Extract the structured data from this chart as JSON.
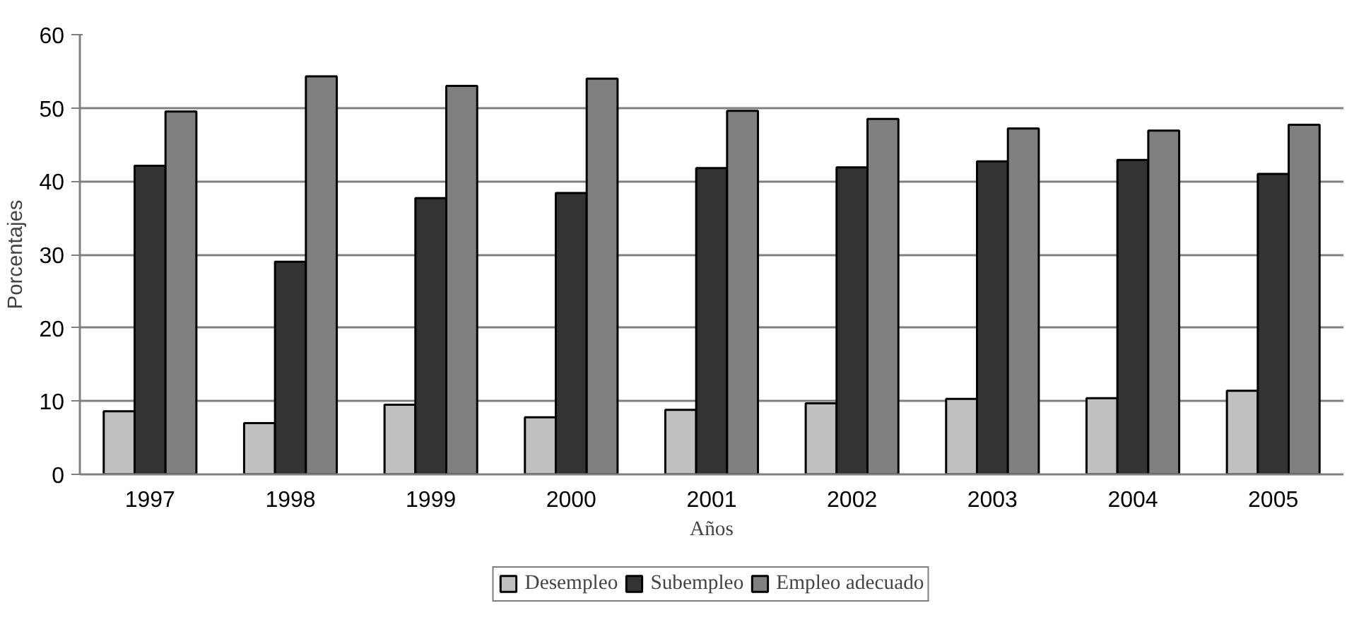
{
  "chart_data": {
    "type": "bar",
    "xlabel": "Años",
    "ylabel": "Porcentajes",
    "categories": [
      "1997",
      "1998",
      "1999",
      "2000",
      "2001",
      "2002",
      "2003",
      "2004",
      "2005"
    ],
    "series": [
      {
        "name": "Desempleo",
        "color": "#c0c0c0",
        "values": [
          8.6,
          7.0,
          9.5,
          7.8,
          8.8,
          9.7,
          10.3,
          10.4,
          11.4
        ]
      },
      {
        "name": "Subempleo",
        "color": "#333333",
        "values": [
          42.1,
          29.0,
          37.7,
          38.4,
          41.8,
          41.9,
          42.7,
          42.9,
          41.0
        ]
      },
      {
        "name": "Empleo adecuado",
        "color": "#808080",
        "values": [
          49.5,
          54.3,
          53.0,
          54.0,
          49.6,
          48.5,
          47.2,
          46.9,
          47.7
        ]
      }
    ],
    "ylim": [
      0,
      60
    ],
    "yticks": [
      0,
      10,
      20,
      30,
      40,
      50,
      60
    ],
    "grid": "y",
    "legend": "bottom"
  }
}
